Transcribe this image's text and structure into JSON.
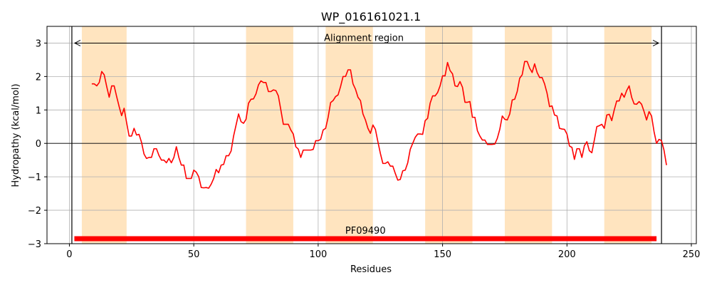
{
  "chart_data": {
    "type": "line",
    "title": "WP_016161021.1",
    "xlabel": "Residues",
    "ylabel": "Hydropathy (kcal/mol)",
    "xlim": [
      -9,
      252
    ],
    "ylim": [
      -3,
      3.5
    ],
    "xticks": [
      0,
      50,
      100,
      150,
      200,
      250
    ],
    "yticks": [
      -3,
      -2,
      -1,
      0,
      1,
      2,
      3
    ],
    "grid": true,
    "colors": {
      "line": "#ff0000",
      "band": "#ffe4bf",
      "domain_bar": "#ff0000",
      "frame": "#000000",
      "grid": "#b0b0b0"
    },
    "highlight_regions": [
      [
        5,
        23
      ],
      [
        71,
        90
      ],
      [
        103,
        122
      ],
      [
        143,
        162
      ],
      [
        175,
        194
      ],
      [
        215,
        234
      ]
    ],
    "alignment_region": {
      "label": "Alignment region",
      "start": 1,
      "end": 238,
      "y": 3.0
    },
    "domain": {
      "label": "PF09490",
      "start": 2,
      "end": 236,
      "y": -2.85
    },
    "series": [
      {
        "x": [
          9,
          10,
          11,
          12,
          13,
          14,
          15,
          16,
          17,
          18,
          19,
          20,
          21,
          22,
          23,
          24,
          25,
          26,
          27,
          28,
          29,
          30,
          31,
          32,
          33,
          34,
          35,
          36,
          37,
          38,
          39,
          40,
          41,
          42,
          43,
          44,
          45,
          46,
          47,
          48,
          49,
          50,
          51,
          52,
          53,
          54,
          55,
          56,
          57,
          58,
          59,
          60,
          61,
          62,
          63,
          64,
          65,
          66,
          67,
          68,
          69,
          70,
          71,
          72,
          73,
          74,
          75,
          76,
          77,
          78,
          79,
          80,
          81,
          82,
          83,
          84,
          85,
          86,
          87,
          88,
          89,
          90,
          91,
          92,
          93,
          94,
          95,
          96,
          97,
          98,
          99,
          100,
          101,
          102,
          103,
          104,
          105,
          106,
          107,
          108,
          109,
          110,
          111,
          112,
          113,
          114,
          115,
          116,
          117,
          118,
          119,
          120,
          121,
          122,
          123,
          124,
          125,
          126,
          127,
          128,
          129,
          130,
          131,
          132,
          133,
          134,
          135,
          136,
          137,
          138,
          139,
          140,
          141,
          142,
          143,
          144,
          145,
          146,
          147,
          148,
          149,
          150,
          151,
          152,
          153,
          154,
          155,
          156,
          157,
          158,
          159,
          160,
          161,
          162,
          163,
          164,
          165,
          166,
          167,
          168,
          169,
          170,
          171,
          172,
          173,
          174,
          175,
          176,
          177,
          178,
          179,
          180,
          181,
          182,
          183,
          184,
          185,
          186,
          187,
          188,
          189,
          190,
          191,
          192,
          193,
          194,
          195,
          196,
          197,
          198,
          199,
          200,
          201,
          202,
          203,
          204,
          205,
          206,
          207,
          208,
          209,
          210,
          211,
          212,
          213,
          214,
          215,
          216,
          217,
          218,
          219,
          220,
          221,
          222,
          223,
          224,
          225,
          226,
          227,
          228,
          229,
          230,
          231,
          232,
          233,
          234,
          235,
          236,
          237,
          238,
          239,
          240
        ],
        "y": [
          1.78,
          1.78,
          1.72,
          1.82,
          2.15,
          2.05,
          1.7,
          1.38,
          1.72,
          1.72,
          1.4,
          1.1,
          0.83,
          1.05,
          0.62,
          0.22,
          0.22,
          0.45,
          0.25,
          0.27,
          0.03,
          -0.32,
          -0.45,
          -0.42,
          -0.42,
          -0.16,
          -0.16,
          -0.36,
          -0.5,
          -0.5,
          -0.58,
          -0.45,
          -0.58,
          -0.42,
          -0.1,
          -0.42,
          -0.65,
          -0.65,
          -1.05,
          -1.05,
          -1.05,
          -0.8,
          -0.86,
          -1.0,
          -1.32,
          -1.33,
          -1.32,
          -1.34,
          -1.22,
          -1.05,
          -0.78,
          -0.88,
          -0.65,
          -0.63,
          -0.37,
          -0.37,
          -0.23,
          0.22,
          0.55,
          0.88,
          0.65,
          0.6,
          0.72,
          1.2,
          1.32,
          1.33,
          1.48,
          1.75,
          1.87,
          1.82,
          1.82,
          1.55,
          1.55,
          1.6,
          1.58,
          1.42,
          1.0,
          0.57,
          0.57,
          0.57,
          0.4,
          0.28,
          -0.1,
          -0.17,
          -0.42,
          -0.2,
          -0.2,
          -0.2,
          -0.2,
          -0.18,
          0.08,
          0.08,
          0.12,
          0.4,
          0.45,
          0.78,
          1.22,
          1.28,
          1.4,
          1.45,
          1.7,
          2.0,
          2.0,
          2.2,
          2.2,
          1.78,
          1.62,
          1.38,
          1.28,
          0.88,
          0.7,
          0.45,
          0.3,
          0.55,
          0.42,
          0.05,
          -0.3,
          -0.6,
          -0.6,
          -0.55,
          -0.68,
          -0.68,
          -0.9,
          -1.1,
          -1.08,
          -0.82,
          -0.8,
          -0.58,
          -0.18,
          0.0,
          0.18,
          0.28,
          0.28,
          0.27,
          0.68,
          0.75,
          1.2,
          1.42,
          1.42,
          1.52,
          1.72,
          2.02,
          2.02,
          2.42,
          2.18,
          2.08,
          1.72,
          1.7,
          1.85,
          1.68,
          1.23,
          1.23,
          1.25,
          0.78,
          0.78,
          0.38,
          0.22,
          0.1,
          0.1,
          -0.03,
          -0.03,
          -0.03,
          -0.02,
          0.15,
          0.42,
          0.82,
          0.72,
          0.7,
          0.88,
          1.3,
          1.32,
          1.55,
          1.95,
          2.05,
          2.45,
          2.45,
          2.25,
          2.12,
          2.38,
          2.12,
          1.97,
          1.97,
          1.78,
          1.5,
          1.1,
          1.12,
          0.85,
          0.82,
          0.45,
          0.43,
          0.42,
          0.28,
          -0.08,
          -0.12,
          -0.48,
          -0.16,
          -0.16,
          -0.42,
          -0.07,
          0.05,
          -0.22,
          -0.28,
          0.1,
          0.5,
          0.53,
          0.57,
          0.45,
          0.85,
          0.87,
          0.68,
          1.0,
          1.27,
          1.27,
          1.5,
          1.38,
          1.58,
          1.72,
          1.38,
          1.18,
          1.17,
          1.25,
          1.17,
          0.95,
          0.7,
          0.95,
          0.82,
          0.35,
          0.0,
          0.12,
          0.08,
          -0.2,
          -0.65
        ]
      }
    ]
  }
}
